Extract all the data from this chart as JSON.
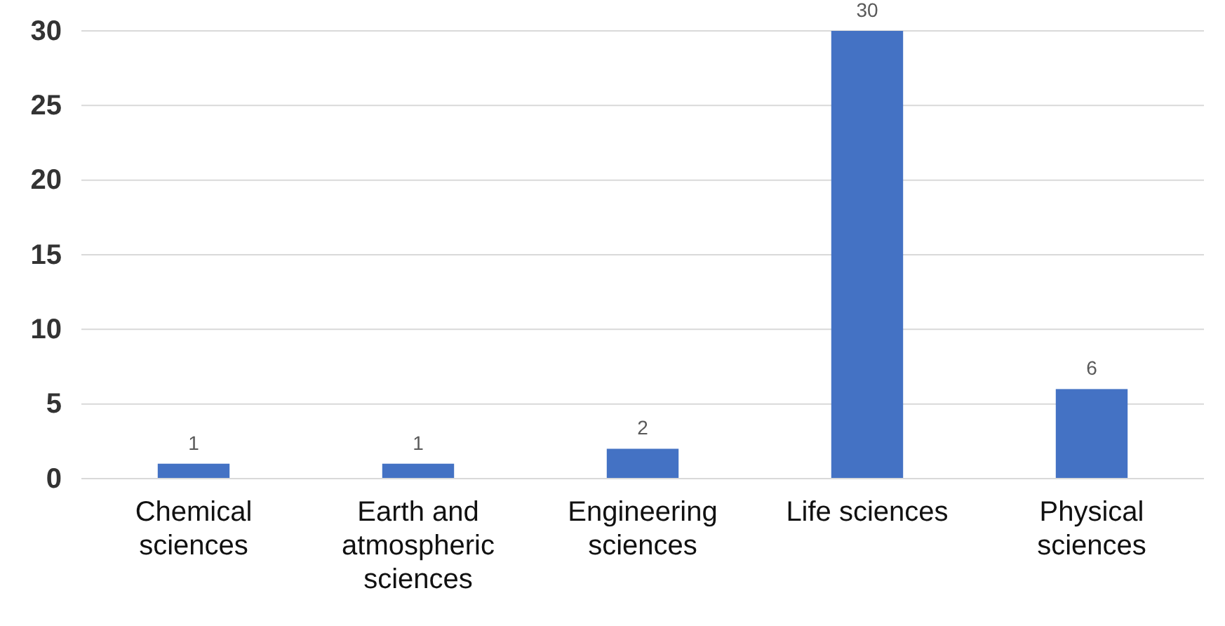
{
  "chart_data": {
    "type": "bar",
    "categories": [
      "Chemical sciences",
      "Earth and atmospheric sciences",
      "Engineering sciences",
      "Life sciences",
      "Physical sciences"
    ],
    "values": [
      1,
      1,
      2,
      30,
      6
    ],
    "color": "#4472c4",
    "ylim": [
      0,
      30
    ],
    "yticks": [
      0,
      5,
      10,
      15,
      20,
      25,
      30
    ],
    "grid": "y",
    "data_labels": true
  }
}
